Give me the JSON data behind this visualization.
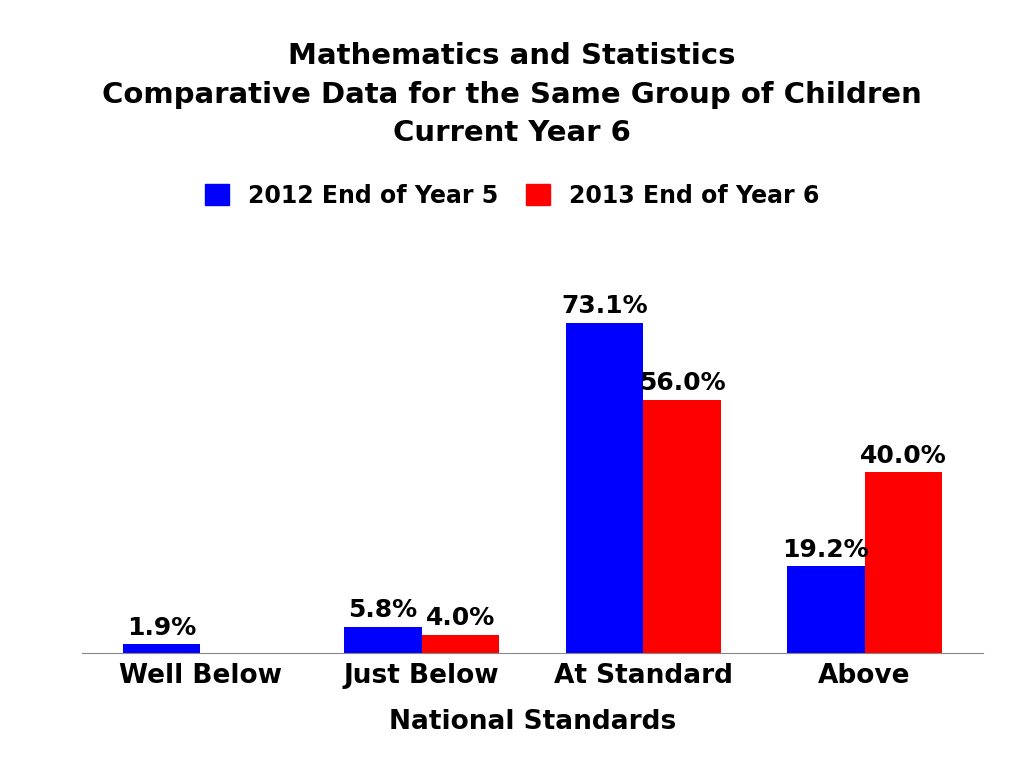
{
  "title_line1": "Mathematics and Statistics",
  "title_line2": "Comparative Data for the Same Group of Children",
  "title_line3": "Current Year 6",
  "categories": [
    "Well Below",
    "Just Below",
    "At Standard",
    "Above"
  ],
  "series1_label": "2012 End of Year 5",
  "series2_label": "2013 End of Year 6",
  "series1_values": [
    1.9,
    5.8,
    73.1,
    19.2
  ],
  "series2_values": [
    0.0,
    4.0,
    56.0,
    40.0
  ],
  "series1_color": "#0000FF",
  "series2_color": "#FF0000",
  "xlabel": "National Standards",
  "bar_width": 0.35,
  "ylim": [
    0,
    85
  ],
  "title_fontsize": 21,
  "label_fontsize": 19,
  "tick_fontsize": 19,
  "legend_fontsize": 17,
  "annotation_fontsize": 18,
  "background_color": "#FFFFFF"
}
